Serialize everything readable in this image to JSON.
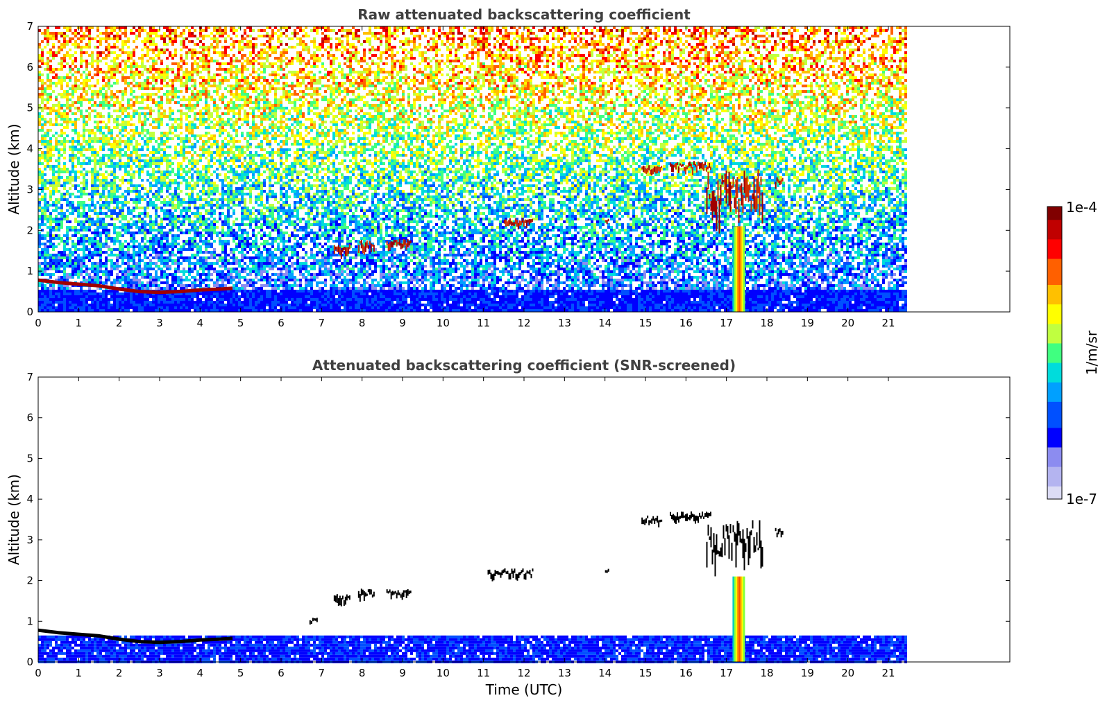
{
  "chart_data": [
    {
      "type": "heatmap",
      "title": "Raw attenuated backscattering coefficient",
      "xlabel": "",
      "ylabel": "Altitude (km)",
      "xlim": [
        0,
        24
      ],
      "ylim": [
        0,
        7
      ],
      "x_ticks": [
        0,
        1,
        2,
        3,
        4,
        5,
        6,
        7,
        8,
        9,
        10,
        11,
        12,
        13,
        14,
        15,
        16,
        17,
        18,
        19,
        20,
        21
      ],
      "y_ticks": [
        0,
        1,
        2,
        3,
        4,
        5,
        6,
        7
      ],
      "data_end_time": 21.45,
      "screened": false,
      "features": [
        {
          "kind": "boundary-layer-top",
          "points": [
            [
              0,
              0.78
            ],
            [
              0.5,
              0.72
            ],
            [
              1,
              0.68
            ],
            [
              1.5,
              0.64
            ],
            [
              2,
              0.56
            ],
            [
              2.5,
              0.5
            ],
            [
              3,
              0.48
            ],
            [
              3.5,
              0.5
            ],
            [
              4,
              0.54
            ],
            [
              4.5,
              0.56
            ],
            [
              4.8,
              0.58
            ]
          ]
        },
        {
          "kind": "cloud",
          "x": [
            7.3,
            7.7
          ],
          "y": [
            1.3,
            1.7
          ]
        },
        {
          "kind": "cloud",
          "x": [
            7.9,
            8.3
          ],
          "y": [
            1.4,
            1.8
          ]
        },
        {
          "kind": "cloud",
          "x": [
            8.6,
            9.2
          ],
          "y": [
            1.5,
            1.8
          ]
        },
        {
          "kind": "cloud",
          "x": [
            11.5,
            12.2
          ],
          "y": [
            2.0,
            2.3
          ]
        },
        {
          "kind": "cloud",
          "x": [
            14.0,
            14.1
          ],
          "y": [
            2.2,
            2.3
          ]
        },
        {
          "kind": "cloud",
          "x": [
            14.9,
            15.4
          ],
          "y": [
            3.35,
            3.6
          ]
        },
        {
          "kind": "cloud",
          "x": [
            15.6,
            16.6
          ],
          "y": [
            3.4,
            3.7
          ]
        },
        {
          "kind": "cloud",
          "x": [
            16.5,
            17.9
          ],
          "y": [
            1.9,
            3.5
          ]
        },
        {
          "kind": "cloud",
          "x": [
            18.2,
            18.4
          ],
          "y": [
            3.05,
            3.3
          ]
        },
        {
          "kind": "plume",
          "x": [
            17.15,
            17.45
          ],
          "y": [
            0,
            2.1
          ]
        }
      ]
    },
    {
      "type": "heatmap",
      "title": "Attenuated backscattering coefficient (SNR-screened)",
      "xlabel": "Time (UTC)",
      "ylabel": "Altitude (km)",
      "xlim": [
        0,
        24
      ],
      "ylim": [
        0,
        7
      ],
      "x_ticks": [
        0,
        1,
        2,
        3,
        4,
        5,
        6,
        7,
        8,
        9,
        10,
        11,
        12,
        13,
        14,
        15,
        16,
        17,
        18,
        19,
        20,
        21
      ],
      "y_ticks": [
        0,
        1,
        2,
        3,
        4,
        5,
        6,
        7
      ],
      "data_end_time": 21.45,
      "screened": true,
      "features": [
        {
          "kind": "boundary-layer-top",
          "points": [
            [
              0,
              0.78
            ],
            [
              0.5,
              0.72
            ],
            [
              1,
              0.68
            ],
            [
              1.5,
              0.64
            ],
            [
              2,
              0.56
            ],
            [
              2.5,
              0.5
            ],
            [
              3,
              0.48
            ],
            [
              3.5,
              0.5
            ],
            [
              4,
              0.54
            ],
            [
              4.5,
              0.56
            ],
            [
              4.8,
              0.58
            ]
          ]
        },
        {
          "kind": "cloud",
          "x": [
            6.7,
            6.9
          ],
          "y": [
            0.9,
            1.1
          ]
        },
        {
          "kind": "cloud",
          "x": [
            7.3,
            7.7
          ],
          "y": [
            1.3,
            1.7
          ]
        },
        {
          "kind": "cloud",
          "x": [
            7.9,
            8.3
          ],
          "y": [
            1.4,
            1.8
          ]
        },
        {
          "kind": "cloud",
          "x": [
            8.6,
            9.2
          ],
          "y": [
            1.5,
            1.8
          ]
        },
        {
          "kind": "cloud",
          "x": [
            11.1,
            12.2
          ],
          "y": [
            2.0,
            2.3
          ]
        },
        {
          "kind": "cloud",
          "x": [
            14.0,
            14.1
          ],
          "y": [
            2.2,
            2.3
          ]
        },
        {
          "kind": "cloud",
          "x": [
            14.9,
            15.4
          ],
          "y": [
            3.35,
            3.6
          ]
        },
        {
          "kind": "cloud",
          "x": [
            15.6,
            16.6
          ],
          "y": [
            3.4,
            3.7
          ]
        },
        {
          "kind": "cloud",
          "x": [
            16.5,
            17.9
          ],
          "y": [
            1.9,
            3.5
          ]
        },
        {
          "kind": "cloud",
          "x": [
            18.2,
            18.4
          ],
          "y": [
            3.05,
            3.3
          ]
        },
        {
          "kind": "plume",
          "x": [
            17.15,
            17.45
          ],
          "y": [
            0,
            2.1
          ]
        }
      ]
    }
  ],
  "colorbar": {
    "label": "1/m/sr",
    "min_label": "1e-7",
    "max_label": "1e-4",
    "colors": [
      "#dcdcf5",
      "#b4b4f0",
      "#8c8cf0",
      "#0000ff",
      "#0050ff",
      "#00a0ff",
      "#00dcdc",
      "#40ff80",
      "#c0ff40",
      "#ffff00",
      "#ffc000",
      "#ff6000",
      "#ff0000",
      "#c00000",
      "#800000"
    ]
  }
}
